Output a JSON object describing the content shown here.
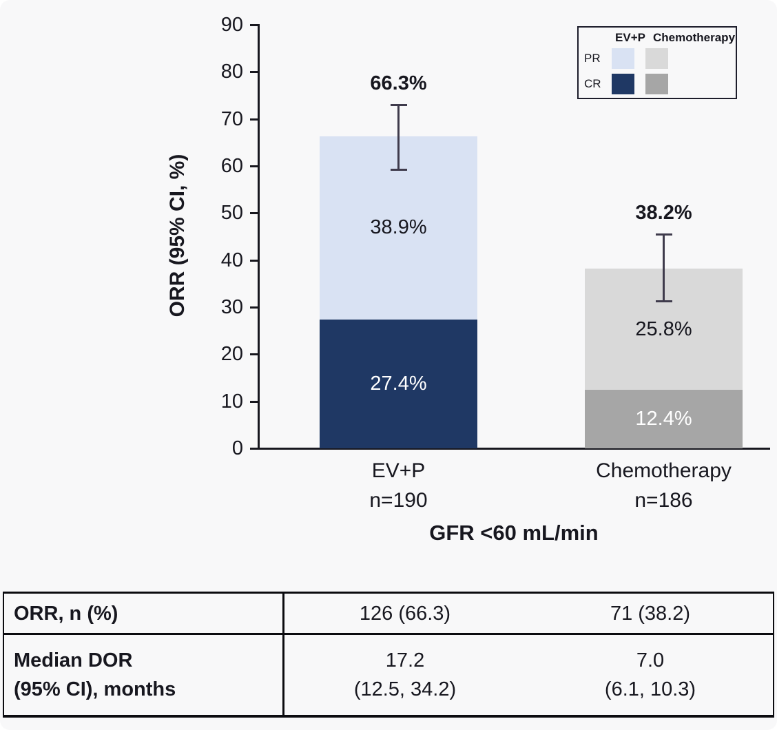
{
  "chart_data": {
    "type": "bar",
    "stacked": true,
    "title": "",
    "ylabel": "ORR (95% CI, %)",
    "xlabel": "GFR <60 mL/min",
    "ylim": [
      0,
      90
    ],
    "yticks": [
      0,
      10,
      20,
      30,
      40,
      50,
      60,
      70,
      80,
      90
    ],
    "grid": false,
    "legend": {
      "position": "top-right",
      "columns": [
        "EV+P",
        "Chemotherapy"
      ],
      "rows": [
        "PR",
        "CR"
      ]
    },
    "groups": [
      {
        "name": "EV+P",
        "n_label": "n=190",
        "total": 66.3,
        "total_label": "66.3%",
        "ci": {
          "low": 59.1,
          "high": 73.0
        },
        "segments": [
          {
            "name": "CR",
            "value": 27.4,
            "label": "27.4%",
            "color": "#1f3864",
            "text_color": "#ffffff"
          },
          {
            "name": "PR",
            "value": 38.9,
            "label": "38.9%",
            "color": "#d9e2f3",
            "text_color": "#17171f"
          }
        ]
      },
      {
        "name": "Chemotherapy",
        "n_label": "n=186",
        "total": 38.2,
        "total_label": "38.2%",
        "ci": {
          "low": 31.1,
          "high": 45.5
        },
        "segments": [
          {
            "name": "CR",
            "value": 12.4,
            "label": "12.4%",
            "color": "#a6a6a6",
            "text_color": "#ffffff"
          },
          {
            "name": "PR",
            "value": 25.8,
            "label": "25.8%",
            "color": "#d9d9d9",
            "text_color": "#17171f"
          }
        ]
      }
    ]
  },
  "table": {
    "rows": [
      {
        "label_lines": [
          "ORR, n (%)"
        ],
        "values": [
          [
            "126 (66.3)"
          ],
          [
            "71 (38.2)"
          ]
        ]
      },
      {
        "label_lines": [
          "Median DOR",
          "(95% CI), months"
        ],
        "values": [
          [
            "17.2",
            "(12.5, 34.2)"
          ],
          [
            "7.0",
            "(6.1, 10.3)"
          ]
        ]
      }
    ]
  },
  "colors": {
    "background": "#f8f8f9",
    "text": "#17171f",
    "axis": "#17171f",
    "error_bar": "#3f3b4c",
    "evp_cr": "#1f3864",
    "evp_pr": "#d9e2f3",
    "chemo_cr": "#a6a6a6",
    "chemo_pr": "#d9d9d9"
  }
}
